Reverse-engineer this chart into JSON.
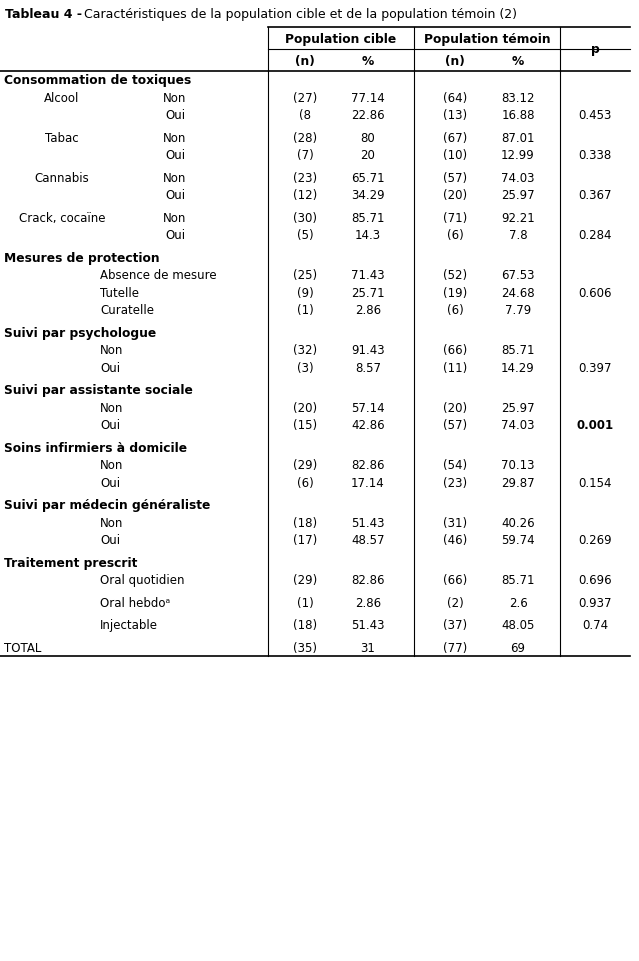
{
  "title_bold": "Tableau 4 -",
  "title_rest": "   Caractéristiques de la population cible et de la population témoin (2)",
  "col_header_1": "Population cible",
  "col_header_2": "Population témoin",
  "figsize": [
    6.39,
    9.62
  ],
  "dpi": 100,
  "rows": [
    {
      "type": "section",
      "label": "Consommation de toxiques",
      "n1": "",
      "p1": "",
      "n2": "",
      "p2": "",
      "pval": "",
      "pval_bold": false,
      "cat": "",
      "sublabel": ""
    },
    {
      "type": "data2",
      "label": "Non",
      "cat": "Alcool",
      "n1": "(27)",
      "p1": "77.14",
      "n2": "(64)",
      "p2": "83.12",
      "pval": "",
      "pval_bold": false
    },
    {
      "type": "data2",
      "label": "Oui",
      "cat": "",
      "n1": "(8",
      "p1": "22.86",
      "n2": "(13)",
      "p2": "16.88",
      "pval": "0.453",
      "pval_bold": false
    },
    {
      "type": "spacer"
    },
    {
      "type": "data2",
      "label": "Non",
      "cat": "Tabac",
      "n1": "(28)",
      "p1": "80",
      "n2": "(67)",
      "p2": "87.01",
      "pval": "",
      "pval_bold": false
    },
    {
      "type": "data2",
      "label": "Oui",
      "cat": "",
      "n1": "(7)",
      "p1": "20",
      "n2": "(10)",
      "p2": "12.99",
      "pval": "0.338",
      "pval_bold": false
    },
    {
      "type": "spacer"
    },
    {
      "type": "data2",
      "label": "Non",
      "cat": "Cannabis",
      "n1": "(23)",
      "p1": "65.71",
      "n2": "(57)",
      "p2": "74.03",
      "pval": "",
      "pval_bold": false
    },
    {
      "type": "data2",
      "label": "Oui",
      "cat": "",
      "n1": "(12)",
      "p1": "34.29",
      "n2": "(20)",
      "p2": "25.97",
      "pval": "0.367",
      "pval_bold": false
    },
    {
      "type": "spacer"
    },
    {
      "type": "data2",
      "label": "Non",
      "cat": "Crack, cocaïne",
      "n1": "(30)",
      "p1": "85.71",
      "n2": "(71)",
      "p2": "92.21",
      "pval": "",
      "pval_bold": false
    },
    {
      "type": "data2",
      "label": "Oui",
      "cat": "",
      "n1": "(5)",
      "p1": "14.3",
      "n2": "(6)",
      "p2": "7.8",
      "pval": "0.284",
      "pval_bold": false
    },
    {
      "type": "spacer"
    },
    {
      "type": "section",
      "label": "Mesures de protection",
      "n1": "",
      "p1": "",
      "n2": "",
      "p2": "",
      "pval": "",
      "pval_bold": false,
      "cat": "",
      "sublabel": ""
    },
    {
      "type": "data1",
      "label": "Absence de mesure",
      "cat": "",
      "n1": "(25)",
      "p1": "71.43",
      "n2": "(52)",
      "p2": "67.53",
      "pval": "",
      "pval_bold": false
    },
    {
      "type": "data1",
      "label": "Tutelle",
      "cat": "",
      "n1": "(9)",
      "p1": "25.71",
      "n2": "(19)",
      "p2": "24.68",
      "pval": "0.606",
      "pval_bold": false
    },
    {
      "type": "data1",
      "label": "Curatelle",
      "cat": "",
      "n1": "(1)",
      "p1": "2.86",
      "n2": "(6)",
      "p2": "7.79",
      "pval": "",
      "pval_bold": false
    },
    {
      "type": "spacer"
    },
    {
      "type": "section",
      "label": "Suivi par psychologue",
      "n1": "",
      "p1": "",
      "n2": "",
      "p2": "",
      "pval": "",
      "pval_bold": false,
      "cat": "",
      "sublabel": ""
    },
    {
      "type": "data1",
      "label": "Non",
      "cat": "",
      "n1": "(32)",
      "p1": "91.43",
      "n2": "(66)",
      "p2": "85.71",
      "pval": "",
      "pval_bold": false
    },
    {
      "type": "data1",
      "label": "Oui",
      "cat": "",
      "n1": "(3)",
      "p1": "8.57",
      "n2": "(11)",
      "p2": "14.29",
      "pval": "0.397",
      "pval_bold": false
    },
    {
      "type": "spacer"
    },
    {
      "type": "section",
      "label": "Suivi par assistante sociale",
      "n1": "",
      "p1": "",
      "n2": "",
      "p2": "",
      "pval": "",
      "pval_bold": false,
      "cat": "",
      "sublabel": ""
    },
    {
      "type": "data1",
      "label": "Non",
      "cat": "",
      "n1": "(20)",
      "p1": "57.14",
      "n2": "(20)",
      "p2": "25.97",
      "pval": "",
      "pval_bold": false
    },
    {
      "type": "data1",
      "label": "Oui",
      "cat": "",
      "n1": "(15)",
      "p1": "42.86",
      "n2": "(57)",
      "p2": "74.03",
      "pval": "0.001",
      "pval_bold": true
    },
    {
      "type": "spacer"
    },
    {
      "type": "section",
      "label": "Soins infirmiers à domicile",
      "n1": "",
      "p1": "",
      "n2": "",
      "p2": "",
      "pval": "",
      "pval_bold": false,
      "cat": "",
      "sublabel": ""
    },
    {
      "type": "data1",
      "label": "Non",
      "cat": "",
      "n1": "(29)",
      "p1": "82.86",
      "n2": "(54)",
      "p2": "70.13",
      "pval": "",
      "pval_bold": false
    },
    {
      "type": "data1",
      "label": "Oui",
      "cat": "",
      "n1": "(6)",
      "p1": "17.14",
      "n2": "(23)",
      "p2": "29.87",
      "pval": "0.154",
      "pval_bold": false
    },
    {
      "type": "spacer"
    },
    {
      "type": "section",
      "label": "Suivi par médecin généraliste",
      "n1": "",
      "p1": "",
      "n2": "",
      "p2": "",
      "pval": "",
      "pval_bold": false,
      "cat": "",
      "sublabel": ""
    },
    {
      "type": "data1",
      "label": "Non",
      "cat": "",
      "n1": "(18)",
      "p1": "51.43",
      "n2": "(31)",
      "p2": "40.26",
      "pval": "",
      "pval_bold": false
    },
    {
      "type": "data1",
      "label": "Oui",
      "cat": "",
      "n1": "(17)",
      "p1": "48.57",
      "n2": "(46)",
      "p2": "59.74",
      "pval": "0.269",
      "pval_bold": false
    },
    {
      "type": "spacer"
    },
    {
      "type": "section",
      "label": "Traitement prescrit",
      "n1": "",
      "p1": "",
      "n2": "",
      "p2": "",
      "pval": "",
      "pval_bold": false,
      "cat": "",
      "sublabel": ""
    },
    {
      "type": "data1",
      "label": "Oral quotidien",
      "cat": "",
      "n1": "(29)",
      "p1": "82.86",
      "n2": "(66)",
      "p2": "85.71",
      "pval": "0.696",
      "pval_bold": false
    },
    {
      "type": "spacer"
    },
    {
      "type": "data1",
      "label": "Oral hebdoᵃ",
      "cat": "",
      "n1": "(1)",
      "p1": "2.86",
      "n2": "(2)",
      "p2": "2.6",
      "pval": "0.937",
      "pval_bold": false
    },
    {
      "type": "spacer"
    },
    {
      "type": "data1",
      "label": "Injectable",
      "cat": "",
      "n1": "(18)",
      "p1": "51.43",
      "n2": "(37)",
      "p2": "48.05",
      "pval": "0.74",
      "pval_bold": false
    },
    {
      "type": "spacer"
    },
    {
      "type": "total",
      "label": "TOTAL",
      "cat": "",
      "n1": "(35)",
      "p1": "31",
      "n2": "(77)",
      "p2": "69",
      "pval": "",
      "pval_bold": false
    }
  ]
}
